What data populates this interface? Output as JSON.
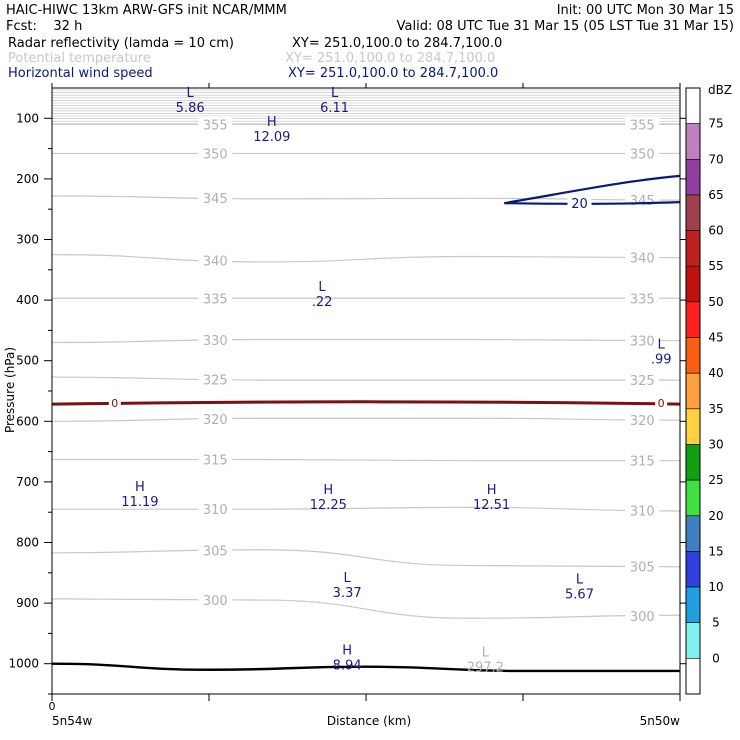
{
  "header": {
    "left_line1": "HAIC-HIWC 13km ARW-GFS init   NCAR/MMM",
    "left_line2": "Fcst:    32 h",
    "right_line1": "Init: 00 UTC Mon 30 Mar 15",
    "right_line2": "Valid: 08 UTC Tue 31 Mar 15 (05 LST Tue 31 Mar 15)"
  },
  "fields": [
    {
      "name": "Radar reflectivity (lamda = 10 cm)",
      "xy": "XY= 251.0,100.0 to 284.7,100.0",
      "color": "#000000"
    },
    {
      "name": "Potential temperature",
      "xy": "XY= 251.0,100.0 to 284.7,100.0",
      "color": "#c8c8c8"
    },
    {
      "name": "Horizontal wind speed",
      "xy": "XY= 251.0,100.0 to 284.7,100.0",
      "color": "#0a1a7a"
    }
  ],
  "chart_data": {
    "type": "contour-cross-section",
    "xlabel": "Distance (km)",
    "ylabel": "Pressure (hPa)",
    "x_start_label": "5n54w",
    "x_end_label": "5n50w",
    "x_zero_label": "0",
    "ylim": [
      1050,
      50
    ],
    "yticks": [
      100,
      200,
      300,
      400,
      500,
      600,
      700,
      800,
      900,
      1000
    ],
    "theta_contours": [
      {
        "value": "355",
        "p": [
          110,
          110,
          110,
          110
        ]
      },
      {
        "value": "350",
        "p": [
          158,
          158,
          158,
          158
        ]
      },
      {
        "value": "345",
        "p": [
          228,
          233,
          232,
          235
        ]
      },
      {
        "value": "340",
        "p": [
          325,
          337,
          328,
          330
        ]
      },
      {
        "value": "335",
        "p": [
          397,
          397,
          397,
          397
        ]
      },
      {
        "value": "330",
        "p": [
          470,
          465,
          465,
          467
        ]
      },
      {
        "value": "325",
        "p": [
          527,
          532,
          532,
          532
        ]
      },
      {
        "value": "320",
        "p": [
          600,
          595,
          595,
          598
        ]
      },
      {
        "value": "315",
        "p": [
          663,
          663,
          665,
          665
        ]
      },
      {
        "value": "310",
        "p": [
          745,
          745,
          742,
          748
        ]
      },
      {
        "value": "305",
        "p": [
          817,
          812,
          838,
          840
        ]
      },
      {
        "value": "300",
        "p": [
          893,
          895,
          925,
          920
        ]
      }
    ],
    "theta_label_columns": [
      "left",
      "right"
    ],
    "freezing_level": {
      "value": "0",
      "p": 570,
      "color": "#7a1010"
    },
    "wind_contour": {
      "value": "20",
      "x_frac_start": 0.72,
      "p_top": 195,
      "p_bottom": 240
    },
    "surface": {
      "p": [
        1000,
        1010,
        1005,
        1012,
        1012
      ]
    },
    "extrema": [
      {
        "type": "L",
        "value": "5.86",
        "x_frac": 0.22,
        "p": 65,
        "field": "wind"
      },
      {
        "type": "L",
        "value": "6.11",
        "x_frac": 0.45,
        "p": 65,
        "field": "wind"
      },
      {
        "type": "H",
        "value": "12.09",
        "x_frac": 0.35,
        "p": 113,
        "field": "wind"
      },
      {
        "type": "L",
        "value": ".22",
        "x_frac": 0.43,
        "p": 385,
        "field": "wind"
      },
      {
        "type": "L",
        "value": ".99",
        "x_frac": 0.97,
        "p": 480,
        "field": "wind"
      },
      {
        "type": "H",
        "value": "11.19",
        "x_frac": 0.14,
        "p": 715,
        "field": "wind"
      },
      {
        "type": "H",
        "value": "12.25",
        "x_frac": 0.44,
        "p": 720,
        "field": "wind"
      },
      {
        "type": "H",
        "value": "12.51",
        "x_frac": 0.7,
        "p": 720,
        "field": "wind"
      },
      {
        "type": "L",
        "value": "3.37",
        "x_frac": 0.47,
        "p": 865,
        "field": "wind"
      },
      {
        "type": "L",
        "value": "5.67",
        "x_frac": 0.84,
        "p": 868,
        "field": "wind"
      },
      {
        "type": "H",
        "value": "8.94",
        "x_frac": 0.47,
        "p": 985,
        "field": "wind"
      },
      {
        "type": "L",
        "value": "297.2",
        "x_frac": 0.69,
        "p": 988,
        "field": "theta"
      }
    ],
    "colorbar": {
      "unit": "dBZ",
      "levels": [
        "75",
        "70",
        "65",
        "60",
        "55",
        "50",
        "45",
        "40",
        "35",
        "30",
        "25",
        "20",
        "15",
        "10",
        "5",
        "0"
      ],
      "colors": [
        "#ffffff",
        "#c080c0",
        "#9040a0",
        "#a04050",
        "#c02020",
        "#c01010",
        "#ff2020",
        "#ff6010",
        "#ffa040",
        "#ffd040",
        "#10a010",
        "#40e040",
        "#4080c0",
        "#3040e0",
        "#20a0e0",
        "#80f0f0",
        "#ffffff"
      ]
    }
  }
}
